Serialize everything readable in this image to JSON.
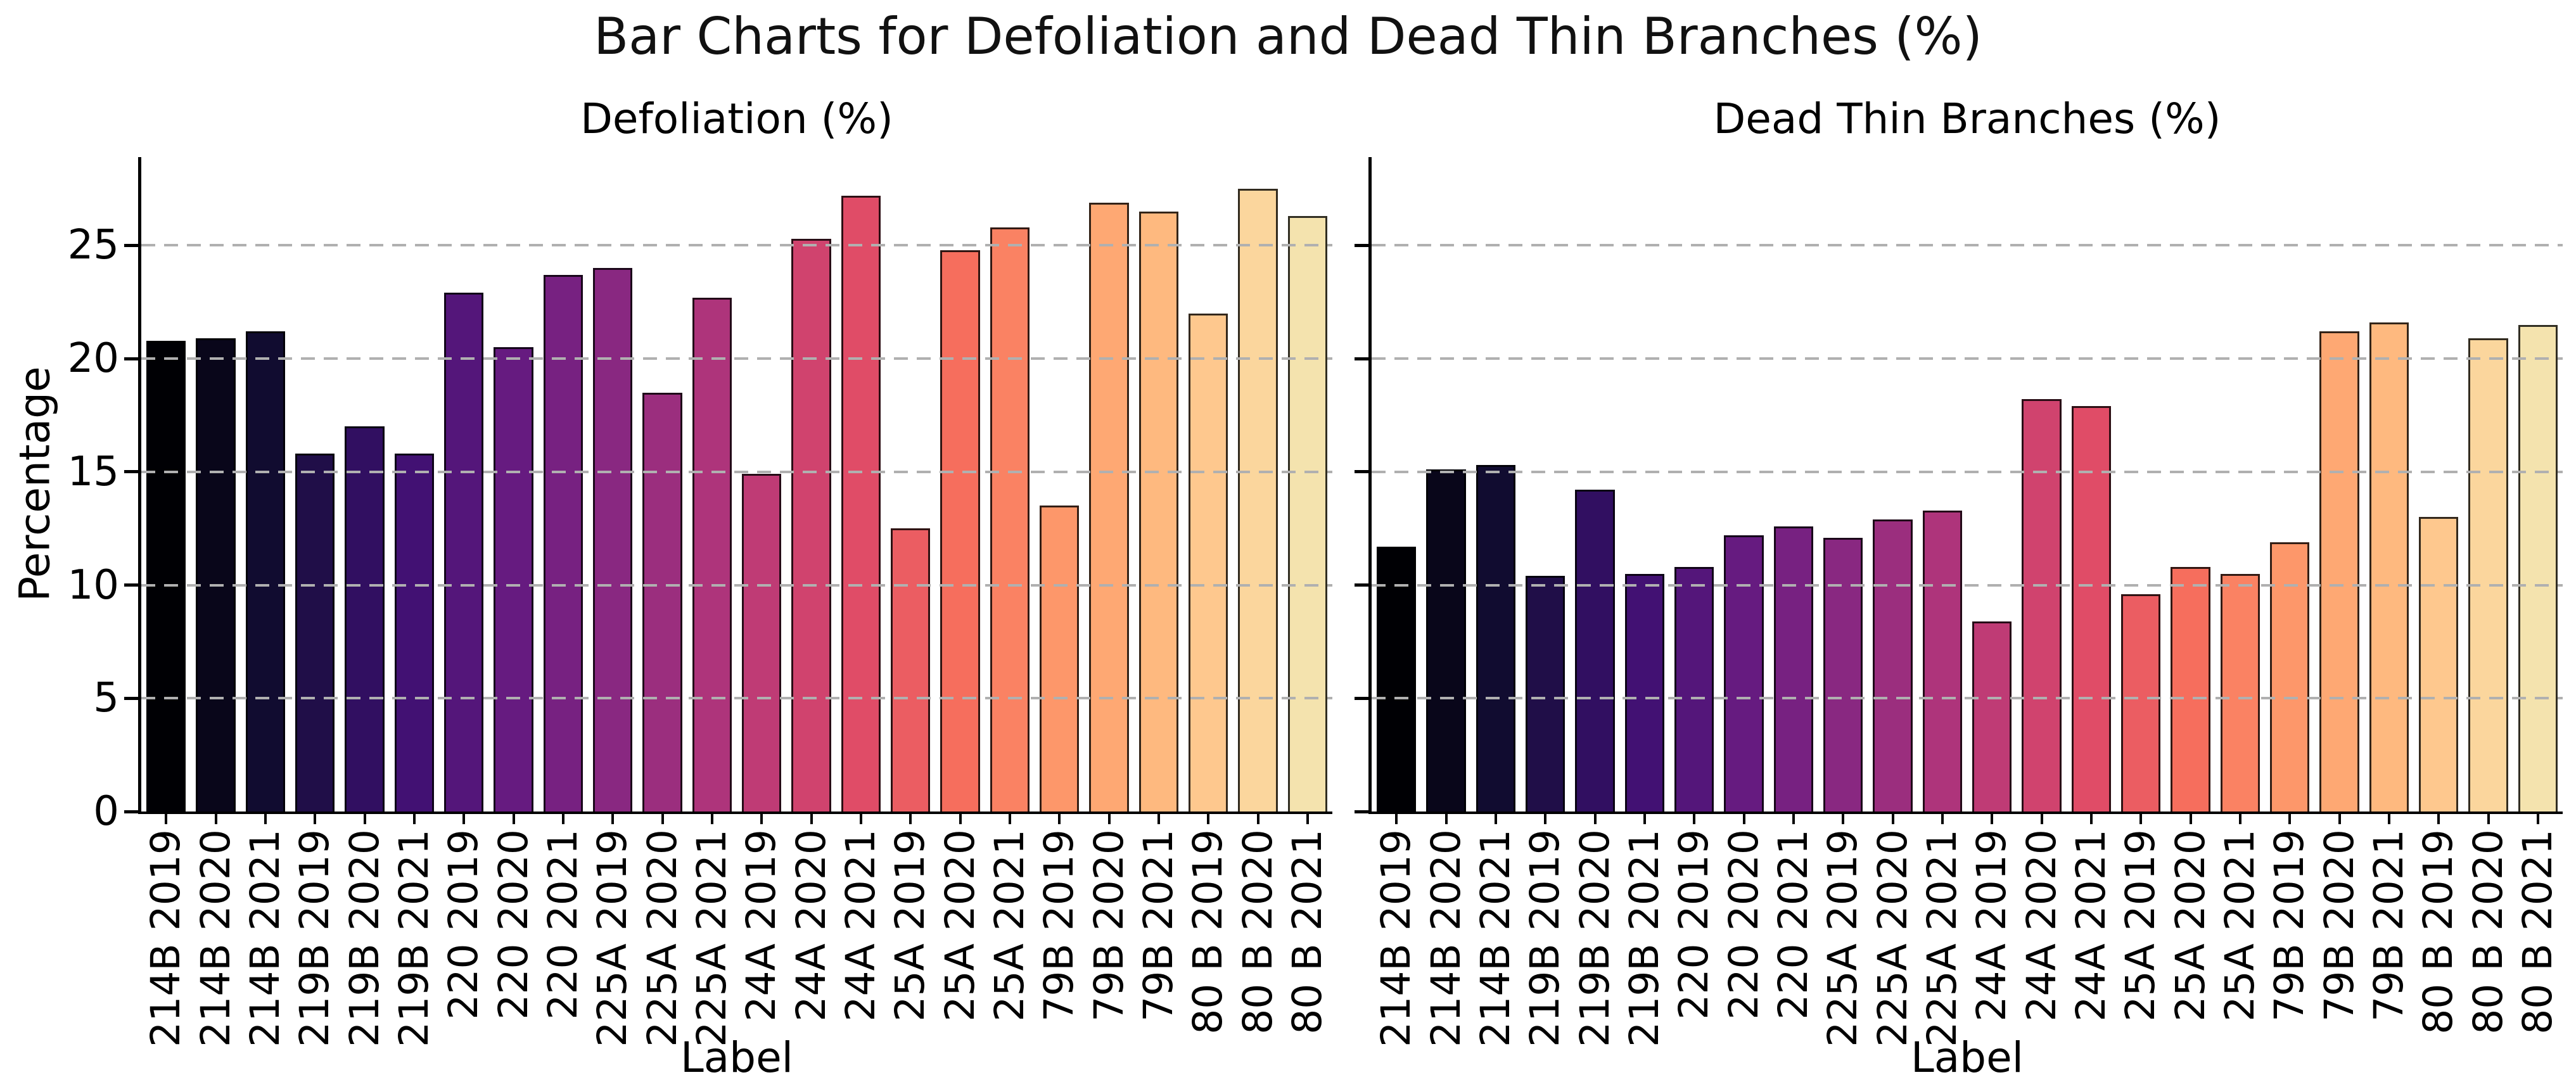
{
  "figure": {
    "title": "Bar Charts for Defoliation and Dead Thin Branches (%)"
  },
  "colors": {
    "background": "#ffffff",
    "grid": "#b0b0b0",
    "spine": "#000000",
    "bar_edge": "rgba(0,0,0,0.8)",
    "text": "#111111"
  },
  "bar_palette": [
    "#000004",
    "#09061a",
    "#110c30",
    "#200e48",
    "#310f61",
    "#421173",
    "#54167a",
    "#661b80",
    "#772181",
    "#892881",
    "#9b2e7e",
    "#ae347b",
    "#bf3b75",
    "#d0436e",
    "#e04c67",
    "#eb5d62",
    "#f66e5d",
    "#fa8263",
    "#fd976a",
    "#fea873",
    "#feb97f",
    "#fec88e",
    "#fbd69d",
    "#f4e3ae"
  ],
  "chart_data": [
    {
      "type": "bar",
      "title": "Defoliation (%)",
      "xlabel": "Label",
      "ylabel": "Percentage",
      "categories": [
        "214B 2019",
        "214B 2020",
        "214B 2021",
        "219B 2019",
        "219B 2020",
        "219B 2021",
        "220 2019",
        "220 2020",
        "220 2021",
        "225A 2019",
        "225A 2020",
        "225A 2021",
        "24A 2019",
        "24A 2020",
        "24A 2021",
        "25A 2019",
        "25A 2020",
        "25A 2021",
        "79B 2019",
        "79B 2020",
        "79B 2021",
        "80 B 2019",
        "80 B 2020",
        "80 B 2021"
      ],
      "values": [
        20.8,
        20.9,
        21.2,
        15.8,
        17.0,
        15.8,
        22.9,
        20.5,
        23.7,
        24.0,
        18.5,
        22.7,
        14.9,
        25.3,
        27.2,
        12.5,
        24.8,
        25.8,
        13.5,
        26.9,
        26.5,
        22.0,
        27.5,
        26.3
      ],
      "ylim": [
        0,
        28.9
      ],
      "yticks": [
        0,
        5,
        10,
        15,
        20,
        25
      ],
      "grid": "horizontal-dashed",
      "legend": "none",
      "bar_color_scheme": "magma"
    },
    {
      "type": "bar",
      "title": "Dead Thin Branches (%)",
      "xlabel": "Label",
      "ylabel": "",
      "categories": [
        "214B 2019",
        "214B 2020",
        "214B 2021",
        "219B 2019",
        "219B 2020",
        "219B 2021",
        "220 2019",
        "220 2020",
        "220 2021",
        "225A 2019",
        "225A 2020",
        "225A 2021",
        "24A 2019",
        "24A 2020",
        "24A 2021",
        "25A 2019",
        "25A 2020",
        "25A 2021",
        "79B 2019",
        "79B 2020",
        "79B 2021",
        "80 B 2019",
        "80 B 2020",
        "80 B 2021"
      ],
      "values": [
        11.7,
        15.1,
        15.3,
        10.4,
        14.2,
        10.5,
        10.8,
        12.2,
        12.6,
        12.1,
        12.9,
        13.3,
        8.4,
        18.2,
        17.9,
        9.6,
        10.8,
        10.5,
        11.9,
        21.2,
        21.6,
        13.0,
        20.9,
        21.5
      ],
      "ylim": [
        0,
        28.9
      ],
      "yticks": [
        0,
        5,
        10,
        15,
        20,
        25
      ],
      "grid": "horizontal-dashed",
      "legend": "none",
      "bar_color_scheme": "magma"
    }
  ]
}
